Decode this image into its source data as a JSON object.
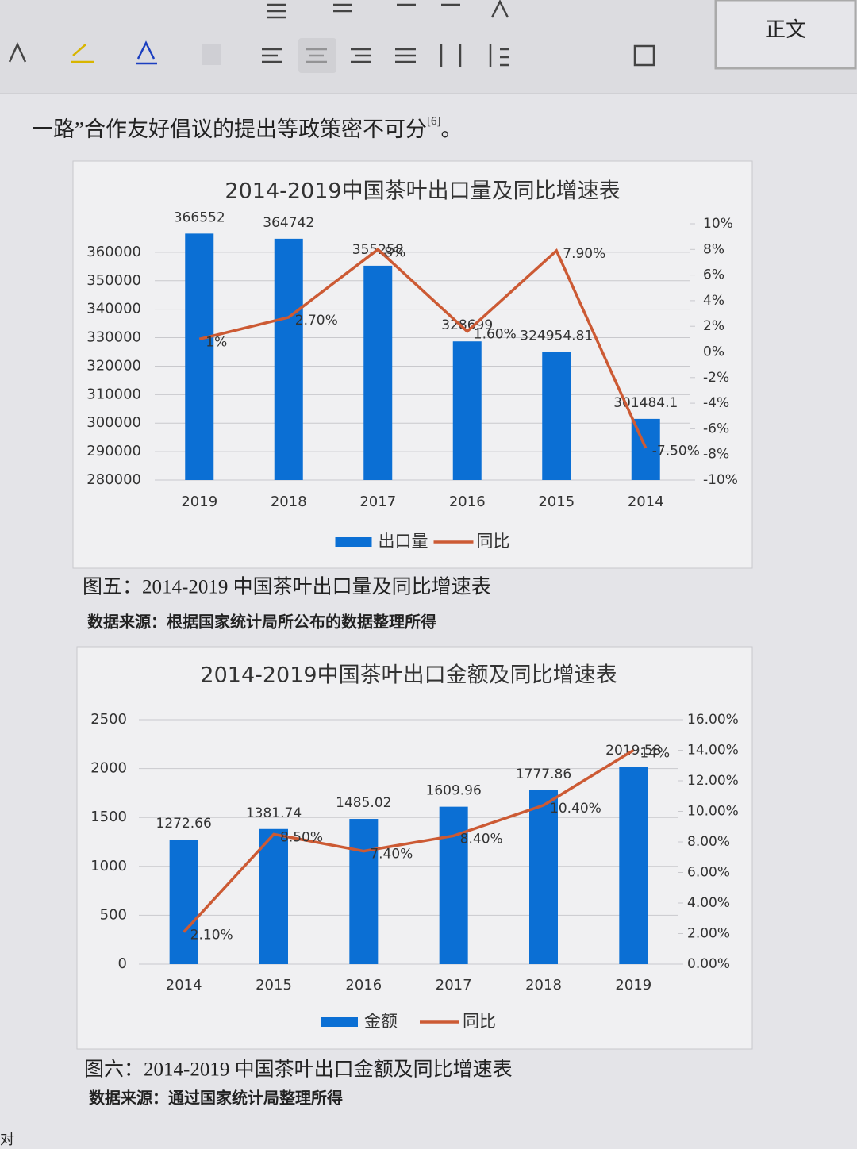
{
  "toolbar": {
    "style": "正文"
  },
  "document": {
    "intro": "一路”合作友好倡议的提出等政策密不可分",
    "intro_ref": "[6]",
    "intro_end": "。",
    "caption_1": "图五：2014-2019 中国茶叶出口量及同比增速表",
    "source_1": "数据来源：根据国家统计局所公布的数据整理所得",
    "caption_2": "图六：2014-2019 中国茶叶出口金额及同比增速表",
    "source_2": "数据来源：通过国家统计局整理所得",
    "corner": "对"
  },
  "chart_data": [
    {
      "type": "bar",
      "title": "2014-2019中国茶叶出口量及同比增速表",
      "categories": [
        "2019",
        "2018",
        "2017",
        "2016",
        "2015",
        "2014"
      ],
      "series": [
        {
          "name": "出口量",
          "color": "#0b6fd4",
          "type": "bar",
          "values": [
            366552,
            364742,
            355258,
            328699,
            324954.81,
            301484.1
          ]
        },
        {
          "name": "同比",
          "color": "#cc5a34",
          "type": "line",
          "axis": "y2",
          "values": [
            1,
            2.7,
            8,
            1.6,
            7.9,
            -7.5
          ],
          "value_labels": [
            "1%",
            "2.70%",
            "8%",
            "1.60%",
            "7.90%",
            "-7.50%"
          ]
        }
      ],
      "ylim": [
        280000,
        370000
      ],
      "yticks": [
        280000,
        290000,
        300000,
        310000,
        320000,
        330000,
        340000,
        350000,
        360000
      ],
      "y2lim": [
        -10,
        10
      ],
      "y2ticks": [
        {
          "value": -10,
          "label": "-10%"
        },
        {
          "value": -8,
          "label": "-8%"
        },
        {
          "value": -6,
          "label": "-6%"
        },
        {
          "value": -4,
          "label": "-4%"
        },
        {
          "value": -2,
          "label": "-2%"
        },
        {
          "value": 0,
          "label": "0%"
        },
        {
          "value": 2,
          "label": "2%"
        },
        {
          "value": 4,
          "label": "4%"
        },
        {
          "value": 6,
          "label": "6%"
        },
        {
          "value": 8,
          "label": "8%"
        },
        {
          "value": 10,
          "label": "10%"
        }
      ],
      "grid": true,
      "legend": "bottom"
    },
    {
      "type": "bar",
      "title": "2014-2019中国茶叶出口金额及同比增速表",
      "categories": [
        "2014",
        "2015",
        "2016",
        "2017",
        "2018",
        "2019"
      ],
      "series": [
        {
          "name": "金额",
          "color": "#0b6fd4",
          "type": "bar",
          "values": [
            1272.66,
            1381.74,
            1485.02,
            1609.96,
            1777.86,
            2019.58
          ]
        },
        {
          "name": "同比",
          "color": "#cc5a34",
          "type": "line",
          "axis": "y2",
          "values": [
            2.1,
            8.5,
            7.4,
            8.4,
            10.4,
            14
          ],
          "value_labels": [
            "2.10%",
            "8.50%",
            "7.40%",
            "8.40%",
            "10.40%",
            "14%"
          ]
        }
      ],
      "ylim": [
        0,
        2500
      ],
      "yticks": [
        0,
        500,
        1000,
        1500,
        2000,
        2500
      ],
      "y2lim": [
        0,
        16
      ],
      "y2ticks": [
        {
          "value": 0,
          "label": "0.00%"
        },
        {
          "value": 2,
          "label": "2.00%"
        },
        {
          "value": 4,
          "label": "4.00%"
        },
        {
          "value": 6,
          "label": "6.00%"
        },
        {
          "value": 8,
          "label": "8.00%"
        },
        {
          "value": 10,
          "label": "10.00%"
        },
        {
          "value": 12,
          "label": "12.00%"
        },
        {
          "value": 14,
          "label": "14.00%"
        },
        {
          "value": 16,
          "label": "16.00%"
        }
      ],
      "grid": true,
      "legend": "bottom"
    }
  ]
}
